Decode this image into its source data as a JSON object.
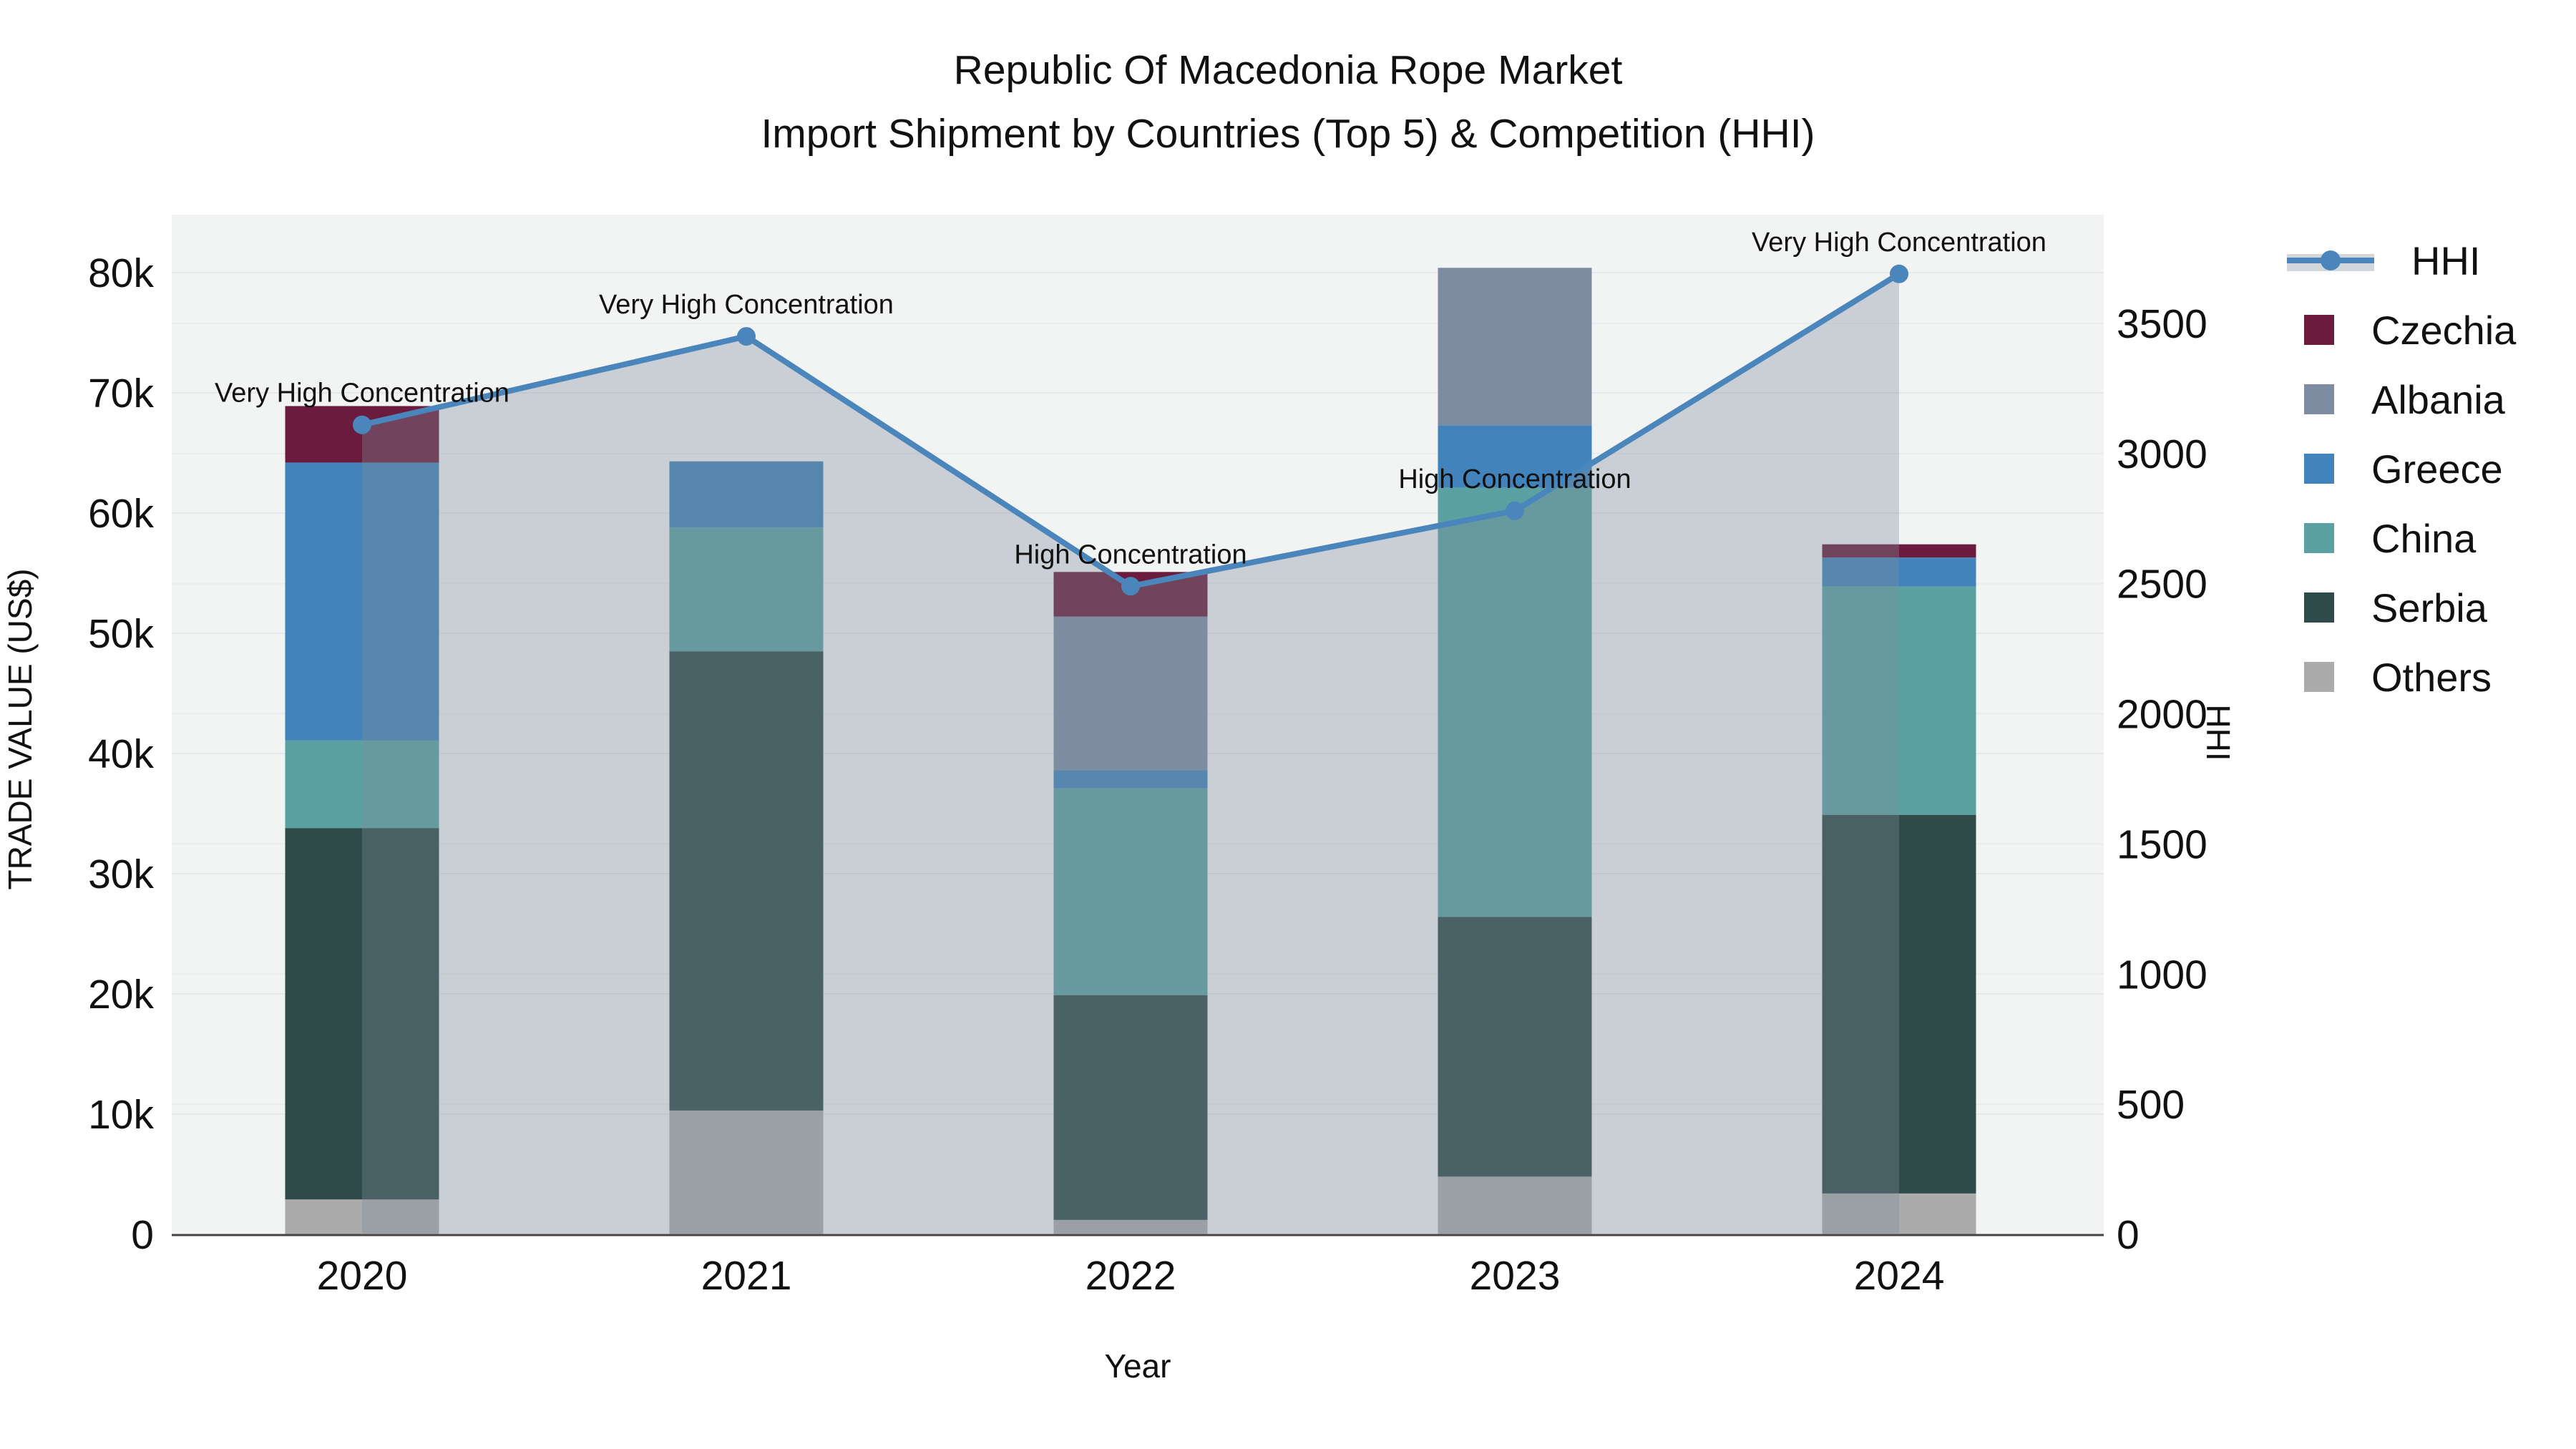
{
  "title": {
    "line1": "Republic Of Macedonia Rope Market",
    "line2": "Import Shipment by Countries (Top 5) & Competition (HHI)"
  },
  "axis_titles": {
    "y_left": "TRADE VALUE (US$)",
    "x": "Year",
    "y_right": "HHI"
  },
  "colors": {
    "plot_bg": "#f2f3f3",
    "grid_left": "#e7e8e9",
    "grid_right": "#eaebec",
    "axis_line": "#454545",
    "hhi_line": "#4a86bb",
    "area_fill": "rgba(125,139,156,0.35)",
    "text": "#111111"
  },
  "legend": {
    "items": [
      {
        "label": "HHI",
        "type": "line",
        "color": "#4a86bb"
      },
      {
        "label": "Czechia",
        "type": "box",
        "color": "#6b1c3c"
      },
      {
        "label": "Albania",
        "type": "box",
        "color": "#7d8ca0"
      },
      {
        "label": "Greece",
        "type": "box",
        "color": "#4383bb"
      },
      {
        "label": "China",
        "type": "box",
        "color": "#5ba1a2"
      },
      {
        "label": "Serbia",
        "type": "box",
        "color": "#2e4b49"
      },
      {
        "label": "Others",
        "type": "box",
        "color": "#ababab"
      }
    ]
  },
  "chart_data": {
    "type": "bar+line",
    "title": "Republic Of Macedonia Rope Market — Import Shipment by Countries (Top 5) & Competition (HHI)",
    "categories": [
      "2020",
      "2021",
      "2022",
      "2023",
      "2024"
    ],
    "bar_unit": "thousand US$",
    "stack_order_note": "series listed bottom-to-top as stacked",
    "series": [
      {
        "name": "Others",
        "color": "#ababab",
        "values": [
          2.9,
          10.3,
          1.2,
          4.8,
          3.4
        ]
      },
      {
        "name": "Serbia",
        "color": "#2e4b49",
        "values": [
          30.9,
          38.2,
          18.7,
          21.6,
          31.5
        ]
      },
      {
        "name": "China",
        "color": "#5ba1a2",
        "values": [
          7.3,
          10.3,
          17.2,
          35.7,
          19.0
        ]
      },
      {
        "name": "Greece",
        "color": "#4383bb",
        "values": [
          23.1,
          5.5,
          1.5,
          5.2,
          2.4
        ]
      },
      {
        "name": "Albania",
        "color": "#7d8ca0",
        "values": [
          0,
          0,
          12.8,
          13.1,
          0
        ]
      },
      {
        "name": "Czechia",
        "color": "#6b1c3c",
        "values": [
          4.7,
          0,
          3.7,
          0,
          1.1
        ]
      }
    ],
    "bar_totals": [
      68.9,
      64.3,
      55.1,
      80.4,
      57.4
    ],
    "line": {
      "name": "HHI",
      "color": "#4a86bb",
      "values": [
        3110,
        3450,
        2490,
        2780,
        3690
      ],
      "area_under_line": true
    },
    "annotations": [
      {
        "category": "2020",
        "text": "Very High Concentration"
      },
      {
        "category": "2021",
        "text": "Very High Concentration"
      },
      {
        "category": "2022",
        "text": "High Concentration"
      },
      {
        "category": "2023",
        "text": "High Concentration"
      },
      {
        "category": "2024",
        "text": "Very High Concentration"
      }
    ],
    "xlabel": "Year",
    "ylabel_left": "TRADE VALUE (US$)",
    "ylabel_right": "HHI",
    "ylim_left_k": [
      0,
      84.8
    ],
    "ylim_right": [
      0,
      3918
    ],
    "y_left_ticks": [
      "0",
      "10k",
      "20k",
      "30k",
      "40k",
      "50k",
      "60k",
      "70k",
      "80k"
    ],
    "y_left_tick_values_k": [
      0,
      10,
      20,
      30,
      40,
      50,
      60,
      70,
      80
    ],
    "y_right_ticks": [
      "0",
      "500",
      "1000",
      "1500",
      "2000",
      "2500",
      "3000",
      "3500"
    ],
    "y_right_tick_values": [
      0,
      500,
      1000,
      1500,
      2000,
      2500,
      3000,
      3500
    ],
    "grid": true,
    "legend_position": "right"
  }
}
